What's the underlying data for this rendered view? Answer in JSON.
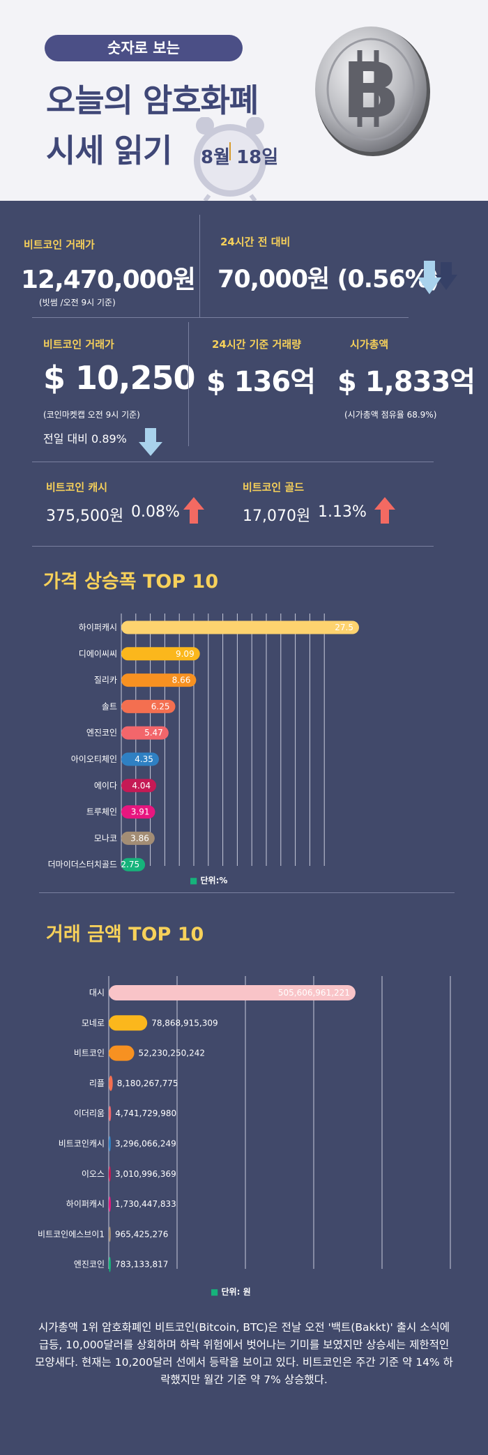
{
  "header": {
    "pill": "숫자로 보는",
    "title_line1": "오늘의 암호화폐",
    "title_line2": "시세 읽기",
    "date": "8월 18일"
  },
  "stats": {
    "krw_label": "비트코인 거래가",
    "krw_value": "12,470,000원",
    "krw_note": "(빗썸 /오전 9시 기준)",
    "change24_label": "24시간 전 대비",
    "change24_value": "70,000원 (0.56%)",
    "usd_label": "비트코인 거래가",
    "usd_value": "$ 10,250",
    "usd_note": "(코인마켓캡 오전 9시 기준)",
    "usd_prev": "전일 대비 0.89%",
    "volume_label": "24시간 기준 거래량",
    "volume_value": "$ 136억",
    "mcap_label": "시가총액",
    "mcap_value": "$ 1,833억",
    "mcap_note": "(시가총액 점유율 68.9%)",
    "cash_label": "비트코인 캐시",
    "cash_value": "375,500원",
    "cash_pct": "0.08%",
    "gold_label": "비트코인 골드",
    "gold_value": "17,070원",
    "gold_pct": "1.13%"
  },
  "colors": {
    "accent_yellow": "#f7d15a",
    "background": "#41496a",
    "arrow_up": "#f36a62",
    "arrow_down": "#a9d2ec"
  },
  "icons": [
    "clock-icon",
    "bitcoin-coin-icon",
    "arrow-down-icon",
    "arrow-up-icon"
  ],
  "chart_data": [
    {
      "type": "bar",
      "orientation": "horizontal",
      "title": "가격 상승폭 TOP 10",
      "unit_label": "단위:%",
      "categories": [
        "하이퍼캐시",
        "디에이씨씨",
        "질리카",
        "솔트",
        "엔진코인",
        "아이오티체인",
        "에이다",
        "트루체인",
        "모나코",
        "더마이더스터치골드"
      ],
      "values": [
        27.5,
        9.09,
        8.66,
        6.25,
        5.47,
        4.35,
        4.04,
        3.91,
        3.86,
        2.75
      ],
      "value_labels": [
        "27.5",
        "9.09",
        "8.66",
        "6.25",
        "5.47",
        "4.35",
        "4.04",
        "3.91",
        "3.86",
        "2.75"
      ],
      "bar_colors": [
        "#fdd36f",
        "#fbb71c",
        "#f79121",
        "#f46f50",
        "#f2666b",
        "#2f80c3",
        "#c51a55",
        "#e7167f",
        "#a38d75",
        "#16b37b"
      ],
      "xlim": [
        0,
        30
      ]
    },
    {
      "type": "bar",
      "orientation": "horizontal",
      "title": "거래 금액 TOP 10",
      "unit_label": "단위: 원",
      "categories": [
        "대시",
        "모네로",
        "비트코인",
        "리플",
        "이더리움",
        "비트코인캐시",
        "이오스",
        "하이퍼캐시",
        "비트코인에스브이1",
        "엔진코인"
      ],
      "values": [
        505606961221,
        78868915309,
        52230250242,
        8180267775,
        4741729980,
        3296066249,
        3010996369,
        1730447833,
        965425276,
        783133817
      ],
      "value_labels": [
        "505,606,961,221",
        "78,868,915,309",
        "52,230,250,242",
        "8,180,267,775",
        "4,741,729,980",
        "3,296,066,249",
        "3,010,996,369",
        "1,730,447,833",
        "965,425,276",
        "783,133,817"
      ],
      "bar_colors": [
        "#f9c4c8",
        "#fbb71c",
        "#f79121",
        "#f46f50",
        "#f2666b",
        "#2f80c3",
        "#c51a55",
        "#e7167f",
        "#a38d75",
        "#16b37b"
      ],
      "xlim": [
        0,
        600000000000
      ]
    }
  ],
  "paragraph": "시가총액 1위 암호화폐인 비트코인(Bitcoin, BTC)은 전날 오전 '백트(Bakkt)' 출시 소식에 급등, 10,000달러를 상회하며 하락 위험에서 벗어나는 기미를 보였지만 상승세는 제한적인 모양새다. 현재는 10,200달러 선에서 등락을 보이고 있다. 비트코인은 주간 기준 약 14% 하락했지만 월간 기준 약 7% 상승했다."
}
